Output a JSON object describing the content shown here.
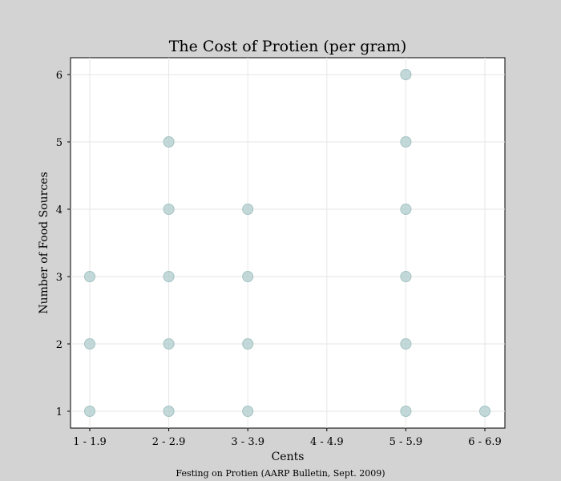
{
  "chart_data": {
    "type": "scatter",
    "title": "The Cost of Protien (per gram)",
    "xlabel": "Cents",
    "ylabel": "Number of Food Sources",
    "categories": [
      "1 - 1.9",
      "2 - 2.9",
      "3 - 3.9",
      "4 - 4.9",
      "5 - 5.9",
      "6 - 6.9"
    ],
    "yticks": [
      1,
      2,
      3,
      4,
      5,
      6
    ],
    "ylim": [
      0.75,
      6.25
    ],
    "grid": true,
    "points": [
      {
        "x": "1 - 1.9",
        "y": 1
      },
      {
        "x": "1 - 1.9",
        "y": 2
      },
      {
        "x": "1 - 1.9",
        "y": 3
      },
      {
        "x": "2 - 2.9",
        "y": 1
      },
      {
        "x": "2 - 2.9",
        "y": 2
      },
      {
        "x": "2 - 2.9",
        "y": 3
      },
      {
        "x": "2 - 2.9",
        "y": 4
      },
      {
        "x": "2 - 2.9",
        "y": 5
      },
      {
        "x": "3 - 3.9",
        "y": 1
      },
      {
        "x": "3 - 3.9",
        "y": 2
      },
      {
        "x": "3 - 3.9",
        "y": 3
      },
      {
        "x": "3 - 3.9",
        "y": 4
      },
      {
        "x": "5 - 5.9",
        "y": 1
      },
      {
        "x": "5 - 5.9",
        "y": 2
      },
      {
        "x": "5 - 5.9",
        "y": 3
      },
      {
        "x": "5 - 5.9",
        "y": 4
      },
      {
        "x": "5 - 5.9",
        "y": 5
      },
      {
        "x": "5 - 5.9",
        "y": 6
      },
      {
        "x": "6 - 6.9",
        "y": 1
      }
    ],
    "marker_color": "#b0cccc",
    "marker_edge_color": "#a3c2c2",
    "source_note": "Festing on Protien (AARP Bulletin, Sept. 2009)"
  },
  "colors": {
    "figure_background": "#d3d3d3",
    "plot_background": "#ffffff",
    "grid": "#e6e6e6"
  }
}
